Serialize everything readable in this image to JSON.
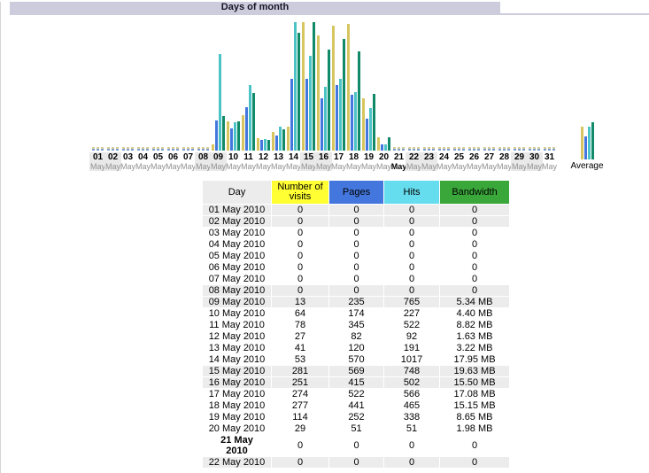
{
  "header": {
    "title": "Days of month",
    "bar_color": "#ccccdd"
  },
  "chart_data": {
    "type": "bar",
    "title": "Days of month",
    "categories": [
      "01",
      "02",
      "03",
      "04",
      "05",
      "06",
      "07",
      "08",
      "09",
      "10",
      "11",
      "12",
      "13",
      "14",
      "15",
      "16",
      "17",
      "18",
      "19",
      "20",
      "21",
      "22",
      "23",
      "24",
      "25",
      "26",
      "27",
      "28",
      "29",
      "30",
      "31"
    ],
    "tick_suffix": "May",
    "series": [
      {
        "key": "visits",
        "name": "Number of visits",
        "color": "#d7c55f",
        "values": [
          0,
          0,
          0,
          0,
          0,
          0,
          0,
          0,
          13,
          64,
          78,
          27,
          41,
          53,
          281,
          251,
          274,
          277,
          114,
          29,
          0,
          0,
          0,
          0,
          0,
          0,
          0,
          0,
          0,
          0,
          0
        ]
      },
      {
        "key": "pages",
        "name": "Pages",
        "color": "#4477dd",
        "values": [
          0,
          0,
          0,
          0,
          0,
          0,
          0,
          0,
          235,
          174,
          345,
          82,
          120,
          570,
          569,
          415,
          522,
          441,
          252,
          51,
          0,
          0,
          0,
          0,
          0,
          0,
          0,
          0,
          0,
          0,
          0
        ]
      },
      {
        "key": "hits",
        "name": "Hits",
        "color": "#4cc3c6",
        "values": [
          0,
          0,
          0,
          0,
          0,
          0,
          0,
          0,
          765,
          227,
          522,
          92,
          191,
          1017,
          748,
          502,
          566,
          465,
          338,
          51,
          0,
          0,
          0,
          0,
          0,
          0,
          0,
          0,
          0,
          0,
          0
        ]
      },
      {
        "key": "bandwidth",
        "name": "Bandwidth",
        "unit": "MB",
        "color": "#108a68",
        "values": [
          0,
          0,
          0,
          0,
          0,
          0,
          0,
          0,
          5.34,
          4.4,
          8.82,
          1.63,
          3.22,
          17.95,
          19.63,
          15.5,
          17.08,
          15.15,
          8.65,
          1.98,
          0,
          0,
          0,
          0,
          0,
          0,
          0,
          0,
          0,
          0,
          0
        ]
      }
    ],
    "weekend_indices": [
      0,
      1,
      7,
      8,
      14,
      15,
      21,
      22,
      28,
      29
    ],
    "current_index": 20,
    "average": {
      "label": "Average",
      "divisor_days": 21
    },
    "layout": {
      "grid": false,
      "legend": "none",
      "scale_note": "visits scaled to max visits; pages and hits scaled to max hits; bandwidth scaled to max bandwidth"
    }
  },
  "table": {
    "columns": [
      {
        "key": "day",
        "label": "Day",
        "bg": "#ececec"
      },
      {
        "key": "visits",
        "label": "Number of visits",
        "bg": "#ffff33"
      },
      {
        "key": "pages",
        "label": "Pages",
        "bg": "#4477dd"
      },
      {
        "key": "hits",
        "label": "Hits",
        "bg": "#66ddee"
      },
      {
        "key": "bandwidth",
        "label": "Bandwidth",
        "bg": "#3aa73a"
      }
    ],
    "rows": [
      {
        "day": "01 May 2010",
        "visits": "0",
        "pages": "0",
        "hits": "0",
        "bandwidth": "0",
        "weekend": true,
        "current": false
      },
      {
        "day": "02 May 2010",
        "visits": "0",
        "pages": "0",
        "hits": "0",
        "bandwidth": "0",
        "weekend": true,
        "current": false
      },
      {
        "day": "03 May 2010",
        "visits": "0",
        "pages": "0",
        "hits": "0",
        "bandwidth": "0",
        "weekend": false,
        "current": false
      },
      {
        "day": "04 May 2010",
        "visits": "0",
        "pages": "0",
        "hits": "0",
        "bandwidth": "0",
        "weekend": false,
        "current": false
      },
      {
        "day": "05 May 2010",
        "visits": "0",
        "pages": "0",
        "hits": "0",
        "bandwidth": "0",
        "weekend": false,
        "current": false
      },
      {
        "day": "06 May 2010",
        "visits": "0",
        "pages": "0",
        "hits": "0",
        "bandwidth": "0",
        "weekend": false,
        "current": false
      },
      {
        "day": "07 May 2010",
        "visits": "0",
        "pages": "0",
        "hits": "0",
        "bandwidth": "0",
        "weekend": false,
        "current": false
      },
      {
        "day": "08 May 2010",
        "visits": "0",
        "pages": "0",
        "hits": "0",
        "bandwidth": "0",
        "weekend": true,
        "current": false
      },
      {
        "day": "09 May 2010",
        "visits": "13",
        "pages": "235",
        "hits": "765",
        "bandwidth": "5.34 MB",
        "weekend": true,
        "current": false
      },
      {
        "day": "10 May 2010",
        "visits": "64",
        "pages": "174",
        "hits": "227",
        "bandwidth": "4.40 MB",
        "weekend": false,
        "current": false
      },
      {
        "day": "11 May 2010",
        "visits": "78",
        "pages": "345",
        "hits": "522",
        "bandwidth": "8.82 MB",
        "weekend": false,
        "current": false
      },
      {
        "day": "12 May 2010",
        "visits": "27",
        "pages": "82",
        "hits": "92",
        "bandwidth": "1.63 MB",
        "weekend": false,
        "current": false
      },
      {
        "day": "13 May 2010",
        "visits": "41",
        "pages": "120",
        "hits": "191",
        "bandwidth": "3.22 MB",
        "weekend": false,
        "current": false
      },
      {
        "day": "14 May 2010",
        "visits": "53",
        "pages": "570",
        "hits": "1017",
        "bandwidth": "17.95 MB",
        "weekend": false,
        "current": false
      },
      {
        "day": "15 May 2010",
        "visits": "281",
        "pages": "569",
        "hits": "748",
        "bandwidth": "19.63 MB",
        "weekend": true,
        "current": false
      },
      {
        "day": "16 May 2010",
        "visits": "251",
        "pages": "415",
        "hits": "502",
        "bandwidth": "15.50 MB",
        "weekend": true,
        "current": false
      },
      {
        "day": "17 May 2010",
        "visits": "274",
        "pages": "522",
        "hits": "566",
        "bandwidth": "17.08 MB",
        "weekend": false,
        "current": false
      },
      {
        "day": "18 May 2010",
        "visits": "277",
        "pages": "441",
        "hits": "465",
        "bandwidth": "15.15 MB",
        "weekend": false,
        "current": false
      },
      {
        "day": "19 May 2010",
        "visits": "114",
        "pages": "252",
        "hits": "338",
        "bandwidth": "8.65 MB",
        "weekend": false,
        "current": false
      },
      {
        "day": "20 May 2010",
        "visits": "29",
        "pages": "51",
        "hits": "51",
        "bandwidth": "1.98 MB",
        "weekend": false,
        "current": false
      },
      {
        "day": "21 May 2010",
        "visits": "0",
        "pages": "0",
        "hits": "0",
        "bandwidth": "0",
        "weekend": false,
        "current": true
      },
      {
        "day": "22 May 2010",
        "visits": "0",
        "pages": "0",
        "hits": "0",
        "bandwidth": "0",
        "weekend": true,
        "current": false
      }
    ]
  }
}
